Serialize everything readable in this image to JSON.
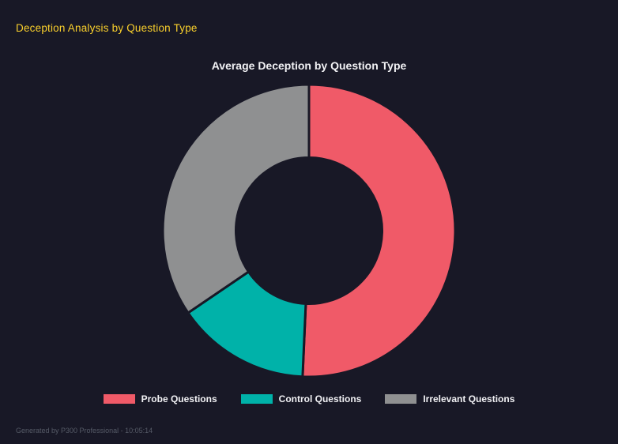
{
  "header": {
    "title": "Deception Analysis by Question Type"
  },
  "chart_data": {
    "type": "pie",
    "variant": "doughnut",
    "title": "Average Deception by Question Type",
    "labels": [
      "Probe Questions",
      "Control Questions",
      "Irrelevant Questions"
    ],
    "values": [
      50.7,
      14.8,
      34.5
    ],
    "unit": "percent-of-circle",
    "colors": [
      "#f05a68",
      "#00b2a9",
      "#8f9091"
    ],
    "legend_position": "bottom",
    "cutout_percent": 50,
    "start_angle_deg": 0,
    "clockwise": true,
    "background": "#181826"
  },
  "footer": {
    "text": "Generated by P300 Professional - 10:05:14"
  },
  "theme": {
    "background": "#181826",
    "header_color": "#fad02c",
    "title_color": "#f2f2f5",
    "legend_text_color": "#f2f2f5",
    "footer_color": "#565b67"
  }
}
